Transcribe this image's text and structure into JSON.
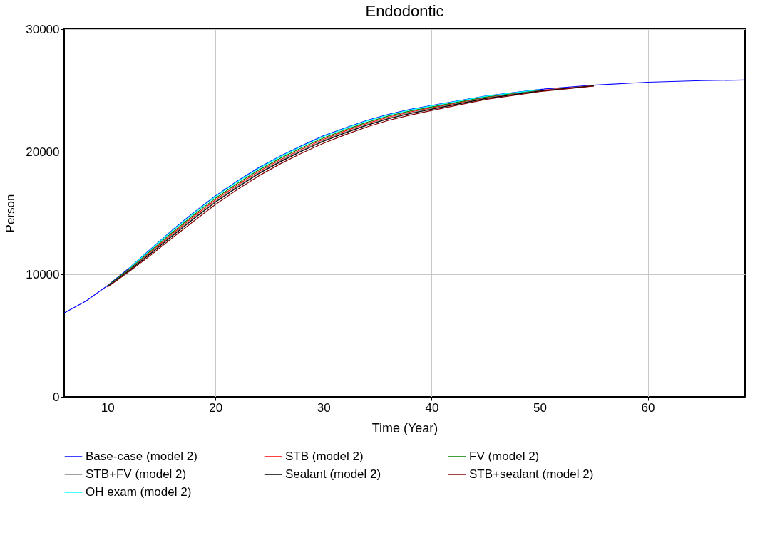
{
  "chart_data": {
    "type": "line",
    "title": "Endodontic",
    "xlabel": "Time (Year)",
    "ylabel": "Person",
    "x": [
      6,
      8,
      10,
      12,
      14,
      16,
      18,
      20,
      22,
      24,
      26,
      28,
      30,
      32,
      34,
      36,
      38,
      40,
      45,
      50,
      55,
      60,
      65,
      69
    ],
    "xlim": [
      6,
      69
    ],
    "xticks": [
      10,
      20,
      30,
      40,
      50,
      60
    ],
    "ylim": [
      0,
      30000
    ],
    "yticks": [
      0,
      10000,
      20000,
      30000
    ],
    "grid": true,
    "legend": "bottom",
    "series": [
      {
        "name": "Base-case (model 2)",
        "color": "#0000ff",
        "values": [
          6850,
          7800,
          9070,
          10500,
          12050,
          13600,
          15050,
          16400,
          17600,
          18700,
          19650,
          20500,
          21300,
          21950,
          22550,
          23050,
          23450,
          23780,
          24550,
          25080,
          25430,
          25670,
          25800,
          25850
        ]
      },
      {
        "name": "STB (model 2)",
        "color": "#ff0000",
        "values": [
          null,
          null,
          9020,
          10370,
          11820,
          13300,
          14720,
          16070,
          17270,
          18390,
          19350,
          20220,
          21020,
          21690,
          22300,
          22820,
          23240,
          23580,
          24420,
          25000,
          25390,
          null,
          null,
          null
        ]
      },
      {
        "name": "FV (model 2)",
        "color": "#008000",
        "values": [
          null,
          null,
          9040,
          10420,
          11910,
          13420,
          14850,
          16200,
          17400,
          18510,
          19470,
          20330,
          21130,
          21790,
          22400,
          22910,
          23320,
          23660,
          24470,
          25030,
          null,
          null,
          null,
          null
        ]
      },
      {
        "name": "STB+FV (model 2)",
        "color": "#808080",
        "values": [
          null,
          null,
          9000,
          10320,
          11730,
          13200,
          14600,
          15950,
          17150,
          18270,
          19250,
          20120,
          20920,
          21590,
          22210,
          22730,
          23160,
          23510,
          24370,
          24970,
          25380,
          null,
          null,
          null
        ]
      },
      {
        "name": "Sealant (model 2)",
        "color": "#000000",
        "values": [
          null,
          null,
          8990,
          10290,
          11690,
          13130,
          14530,
          15880,
          17080,
          18210,
          19180,
          20060,
          20860,
          21530,
          22160,
          22690,
          23110,
          23470,
          24340,
          24950,
          25370,
          null,
          null,
          null
        ]
      },
      {
        "name": "STB+sealant (model 2)",
        "color": "#800000",
        "values": [
          null,
          null,
          8960,
          10220,
          11560,
          12970,
          14350,
          15700,
          16900,
          18030,
          19020,
          19900,
          20700,
          21390,
          22020,
          22560,
          22990,
          23360,
          24270,
          24900,
          25350,
          null,
          null,
          null
        ]
      },
      {
        "name": "OH exam (model 2)",
        "color": "#00ffff",
        "values": [
          null,
          null,
          null,
          10480,
          12010,
          13550,
          14990,
          16340,
          17540,
          18640,
          19600,
          20450,
          21250,
          21900,
          22510,
          23010,
          23410,
          23740,
          24530,
          25060,
          null,
          null,
          null,
          null
        ]
      }
    ]
  }
}
